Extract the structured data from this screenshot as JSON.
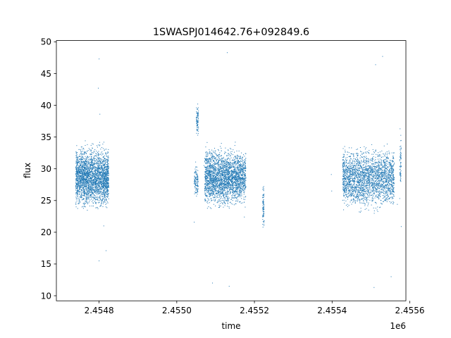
{
  "chart_data": {
    "type": "scatter",
    "title": "1SWASPJ014642.76+092849.6",
    "xlabel": "time",
    "ylabel": "flux",
    "x_offset_label": "1e6",
    "xlim": [
      2454690,
      2455590
    ],
    "ylim": [
      9.2,
      50.2
    ],
    "x_ticks": [
      2454800,
      2455000,
      2455200,
      2455400,
      2455600
    ],
    "x_tick_labels": [
      "2.4548",
      "2.4550",
      "2.4552",
      "2.4554",
      "2.4556"
    ],
    "y_ticks": [
      10,
      15,
      20,
      25,
      30,
      35,
      40,
      45,
      50
    ],
    "y_tick_labels": [
      "10",
      "15",
      "20",
      "25",
      "30",
      "35",
      "40",
      "45",
      "50"
    ],
    "grid": false,
    "legend": false,
    "marker_color": "#1f77b4",
    "series": [
      {
        "points": [
          {
            "x": 2454755,
            "y": 28.5
          },
          {
            "x": 2454760,
            "y": 31.2
          },
          {
            "x": 2454765,
            "y": 24.6
          },
          {
            "x": 2454772,
            "y": 30.1
          },
          {
            "x": 2454778,
            "y": 26.8
          },
          {
            "x": 2454785,
            "y": 32.5
          },
          {
            "x": 2454792,
            "y": 25.4
          },
          {
            "x": 2454798,
            "y": 29.7
          },
          {
            "x": 2454804,
            "y": 33.1
          },
          {
            "x": 2454810,
            "y": 27.2
          },
          {
            "x": 2454816,
            "y": 30.8
          },
          {
            "x": 2454822,
            "y": 25.9
          },
          {
            "x": 2454798,
            "y": 42.7
          },
          {
            "x": 2454800,
            "y": 47.3
          },
          {
            "x": 2454802,
            "y": 38.6
          },
          {
            "x": 2454800,
            "y": 15.5
          },
          {
            "x": 2454812,
            "y": 21.0
          },
          {
            "x": 2454818,
            "y": 17.1
          },
          {
            "x": 2455045,
            "y": 21.6
          },
          {
            "x": 2455052,
            "y": 36.5
          },
          {
            "x": 2455054,
            "y": 40.2
          },
          {
            "x": 2455055,
            "y": 27.3
          },
          {
            "x": 2455070,
            "y": 30.5
          },
          {
            "x": 2455085,
            "y": 26.2
          },
          {
            "x": 2455092,
            "y": 12.0
          },
          {
            "x": 2455100,
            "y": 32.4
          },
          {
            "x": 2455112,
            "y": 24.9
          },
          {
            "x": 2455124,
            "y": 29.6
          },
          {
            "x": 2455130,
            "y": 48.3
          },
          {
            "x": 2455135,
            "y": 11.5
          },
          {
            "x": 2455145,
            "y": 33.0
          },
          {
            "x": 2455160,
            "y": 26.1
          },
          {
            "x": 2455170,
            "y": 30.2
          },
          {
            "x": 2455174,
            "y": 22.4
          },
          {
            "x": 2455222,
            "y": 20.8
          },
          {
            "x": 2455224,
            "y": 27.2
          },
          {
            "x": 2455398,
            "y": 29.1
          },
          {
            "x": 2455399,
            "y": 26.5
          },
          {
            "x": 2455428,
            "y": 30.7
          },
          {
            "x": 2455440,
            "y": 25.2
          },
          {
            "x": 2455455,
            "y": 32.1
          },
          {
            "x": 2455470,
            "y": 27.8
          },
          {
            "x": 2455485,
            "y": 23.6
          },
          {
            "x": 2455500,
            "y": 31.4
          },
          {
            "x": 2455508,
            "y": 11.3
          },
          {
            "x": 2455512,
            "y": 46.4
          },
          {
            "x": 2455520,
            "y": 26.9
          },
          {
            "x": 2455530,
            "y": 47.7
          },
          {
            "x": 2455540,
            "y": 29.3
          },
          {
            "x": 2455552,
            "y": 13.0
          },
          {
            "x": 2455558,
            "y": 31.8
          },
          {
            "x": 2455568,
            "y": 24.4
          },
          {
            "x": 2455575,
            "y": 36.3
          },
          {
            "x": 2455577,
            "y": 28.0
          },
          {
            "x": 2455578,
            "y": 20.9
          }
        ]
      }
    ],
    "clusters": [
      {
        "x0": 2454740,
        "x1": 2454825,
        "low": 22.8,
        "high": 34.5,
        "n": 2600
      },
      {
        "x0": 2455045,
        "x1": 2455055,
        "low": 25.0,
        "high": 31.0,
        "n": 120
      },
      {
        "x0": 2455050,
        "x1": 2455056,
        "low": 35.0,
        "high": 40.5,
        "n": 80
      },
      {
        "x0": 2455072,
        "x1": 2455178,
        "low": 23.0,
        "high": 34.3,
        "n": 2600
      },
      {
        "x0": 2455221,
        "x1": 2455225,
        "low": 20.0,
        "high": 28.0,
        "n": 80
      },
      {
        "x0": 2455427,
        "x1": 2455560,
        "low": 22.8,
        "high": 34.3,
        "n": 2400
      },
      {
        "x0": 2455574,
        "x1": 2455578,
        "low": 25.0,
        "high": 36.8,
        "n": 60
      }
    ]
  }
}
